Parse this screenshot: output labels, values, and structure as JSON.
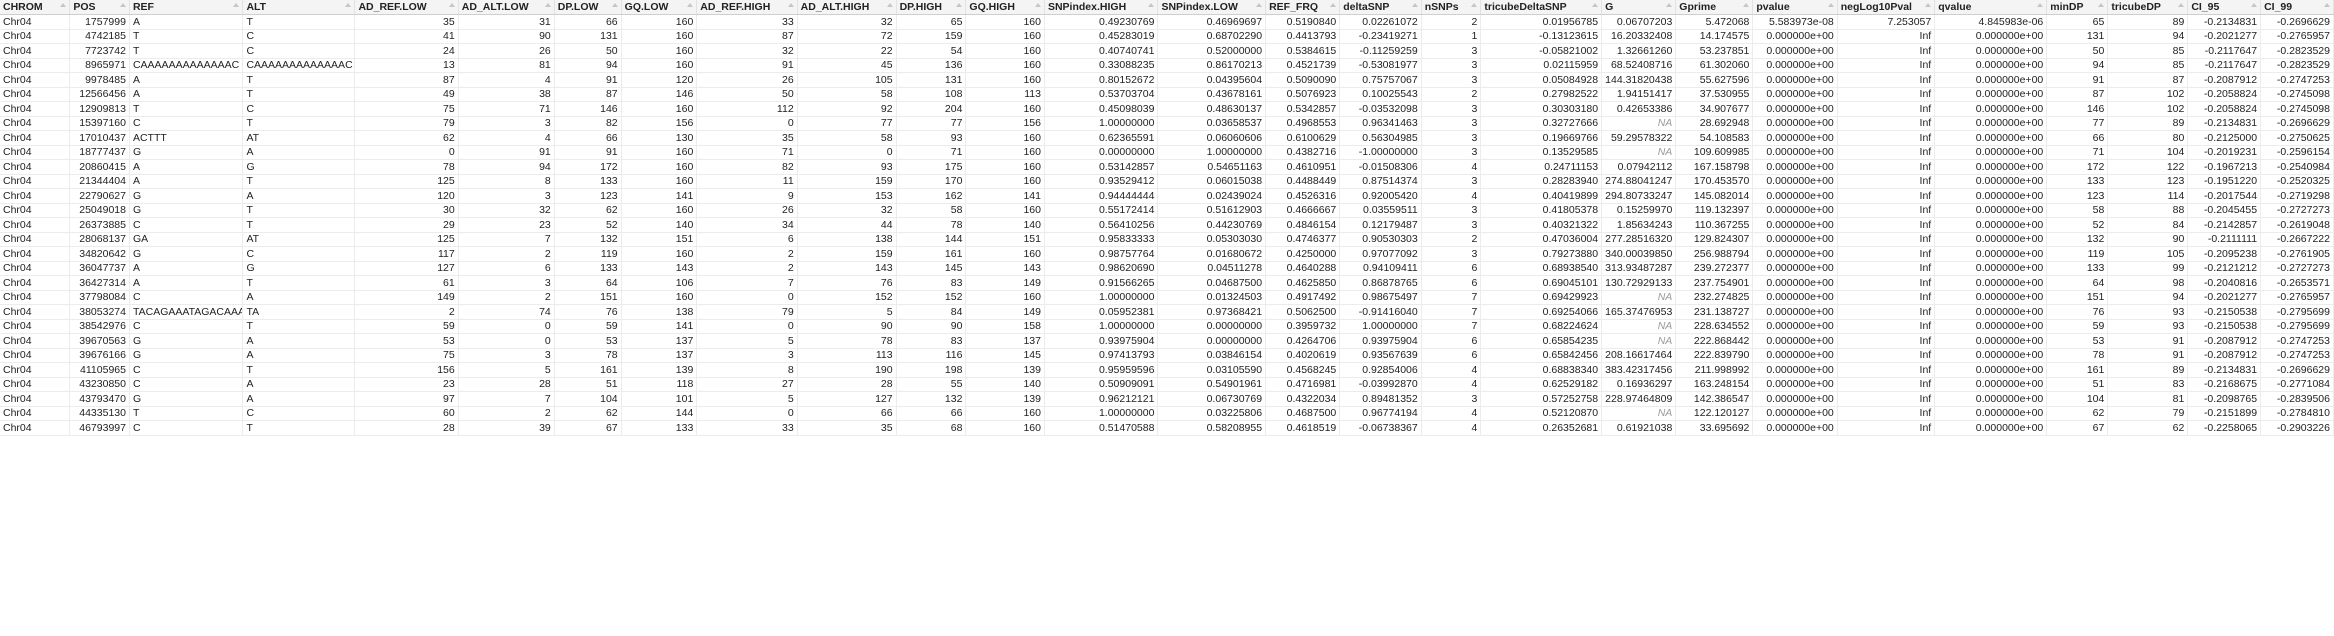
{
  "table": {
    "columns": [
      "CHROM",
      "POS",
      "REF",
      "ALT",
      "AD_REF.LOW",
      "AD_ALT.LOW",
      "DP.LOW",
      "GQ.LOW",
      "AD_REF.HIGH",
      "AD_ALT.HIGH",
      "DP.HIGH",
      "GQ.HIGH",
      "SNPindex.HIGH",
      "SNPindex.LOW",
      "REF_FRQ",
      "deltaSNP",
      "nSNPs",
      "tricubeDeltaSNP",
      "G",
      "Gprime",
      "pvalue",
      "negLog10Pval",
      "qvalue",
      "minDP",
      "tricubeDP",
      "CI_95",
      "CI_99"
    ],
    "text_columns": [
      "CHROM",
      "REF",
      "ALT"
    ],
    "rows": [
      [
        "Chr04",
        "1757999",
        "A",
        "T",
        "35",
        "31",
        "66",
        "160",
        "33",
        "32",
        "65",
        "160",
        "0.49230769",
        "0.46969697",
        "0.5190840",
        "0.02261072",
        "2",
        "0.01956785",
        "0.06707203",
        "5.472068",
        "5.583973e-08",
        "7.253057",
        "4.845983e-06",
        "65",
        "89",
        "-0.2134831",
        "-0.2696629"
      ],
      [
        "Chr04",
        "4742185",
        "T",
        "C",
        "41",
        "90",
        "131",
        "160",
        "87",
        "72",
        "159",
        "160",
        "0.45283019",
        "0.68702290",
        "0.4413793",
        "-0.23419271",
        "1",
        "-0.13123615",
        "16.20332408",
        "14.174575",
        "0.000000e+00",
        "Inf",
        "0.000000e+00",
        "131",
        "94",
        "-0.2021277",
        "-0.2765957"
      ],
      [
        "Chr04",
        "7723742",
        "T",
        "C",
        "24",
        "26",
        "50",
        "160",
        "32",
        "22",
        "54",
        "160",
        "0.40740741",
        "0.52000000",
        "0.5384615",
        "-0.11259259",
        "3",
        "-0.05821002",
        "1.32661260",
        "53.237851",
        "0.000000e+00",
        "Inf",
        "0.000000e+00",
        "50",
        "85",
        "-0.2117647",
        "-0.2823529"
      ],
      [
        "Chr04",
        "8965971",
        "CAAAAAAAAAAAAAC",
        "CAAAAAAAAAAAAAC",
        "13",
        "81",
        "94",
        "160",
        "91",
        "45",
        "136",
        "160",
        "0.33088235",
        "0.86170213",
        "0.4521739",
        "-0.53081977",
        "3",
        "0.02115959",
        "68.52408716",
        "61.302060",
        "0.000000e+00",
        "Inf",
        "0.000000e+00",
        "94",
        "85",
        "-0.2117647",
        "-0.2823529"
      ],
      [
        "Chr04",
        "9978485",
        "A",
        "T",
        "87",
        "4",
        "91",
        "120",
        "26",
        "105",
        "131",
        "160",
        "0.80152672",
        "0.04395604",
        "0.5090090",
        "0.75757067",
        "3",
        "0.05084928",
        "144.31820438",
        "55.627596",
        "0.000000e+00",
        "Inf",
        "0.000000e+00",
        "91",
        "87",
        "-0.2087912",
        "-0.2747253"
      ],
      [
        "Chr04",
        "12566456",
        "A",
        "T",
        "49",
        "38",
        "87",
        "146",
        "50",
        "58",
        "108",
        "113",
        "0.53703704",
        "0.43678161",
        "0.5076923",
        "0.10025543",
        "2",
        "0.27982522",
        "1.94151417",
        "37.530955",
        "0.000000e+00",
        "Inf",
        "0.000000e+00",
        "87",
        "102",
        "-0.2058824",
        "-0.2745098"
      ],
      [
        "Chr04",
        "12909813",
        "T",
        "C",
        "75",
        "71",
        "146",
        "160",
        "112",
        "92",
        "204",
        "160",
        "0.45098039",
        "0.48630137",
        "0.5342857",
        "-0.03532098",
        "3",
        "0.30303180",
        "0.42653386",
        "34.907677",
        "0.000000e+00",
        "Inf",
        "0.000000e+00",
        "146",
        "102",
        "-0.2058824",
        "-0.2745098"
      ],
      [
        "Chr04",
        "15397160",
        "C",
        "T",
        "79",
        "3",
        "82",
        "156",
        "0",
        "77",
        "77",
        "156",
        "1.00000000",
        "0.03658537",
        "0.4968553",
        "0.96341463",
        "3",
        "0.32727666",
        "NA",
        "28.692948",
        "0.000000e+00",
        "Inf",
        "0.000000e+00",
        "77",
        "89",
        "-0.2134831",
        "-0.2696629"
      ],
      [
        "Chr04",
        "17010437",
        "ACTTT",
        "AT",
        "62",
        "4",
        "66",
        "130",
        "35",
        "58",
        "93",
        "160",
        "0.62365591",
        "0.06060606",
        "0.6100629",
        "0.56304985",
        "3",
        "0.19669766",
        "59.29578322",
        "54.108583",
        "0.000000e+00",
        "Inf",
        "0.000000e+00",
        "66",
        "80",
        "-0.2125000",
        "-0.2750625"
      ],
      [
        "Chr04",
        "18777437",
        "G",
        "A",
        "0",
        "91",
        "91",
        "160",
        "71",
        "0",
        "71",
        "160",
        "0.00000000",
        "1.00000000",
        "0.4382716",
        "-1.00000000",
        "3",
        "0.13529585",
        "NA",
        "109.609985",
        "0.000000e+00",
        "Inf",
        "0.000000e+00",
        "71",
        "104",
        "-0.2019231",
        "-0.2596154"
      ],
      [
        "Chr04",
        "20860415",
        "A",
        "G",
        "78",
        "94",
        "172",
        "160",
        "82",
        "93",
        "175",
        "160",
        "0.53142857",
        "0.54651163",
        "0.4610951",
        "-0.01508306",
        "4",
        "0.24711153",
        "0.07942112",
        "167.158798",
        "0.000000e+00",
        "Inf",
        "0.000000e+00",
        "172",
        "122",
        "-0.1967213",
        "-0.2540984"
      ],
      [
        "Chr04",
        "21344404",
        "A",
        "T",
        "125",
        "8",
        "133",
        "160",
        "11",
        "159",
        "170",
        "160",
        "0.93529412",
        "0.06015038",
        "0.4488449",
        "0.87514374",
        "3",
        "0.28283940",
        "274.88041247",
        "170.453570",
        "0.000000e+00",
        "Inf",
        "0.000000e+00",
        "133",
        "123",
        "-0.1951220",
        "-0.2520325"
      ],
      [
        "Chr04",
        "22790627",
        "G",
        "A",
        "120",
        "3",
        "123",
        "141",
        "9",
        "153",
        "162",
        "141",
        "0.94444444",
        "0.02439024",
        "0.4526316",
        "0.92005420",
        "4",
        "0.40419899",
        "294.80733247",
        "145.082014",
        "0.000000e+00",
        "Inf",
        "0.000000e+00",
        "123",
        "114",
        "-0.2017544",
        "-0.2719298"
      ],
      [
        "Chr04",
        "25049018",
        "G",
        "T",
        "30",
        "32",
        "62",
        "160",
        "26",
        "32",
        "58",
        "160",
        "0.55172414",
        "0.51612903",
        "0.4666667",
        "0.03559511",
        "3",
        "0.41805378",
        "0.15259970",
        "119.132397",
        "0.000000e+00",
        "Inf",
        "0.000000e+00",
        "58",
        "88",
        "-0.2045455",
        "-0.2727273"
      ],
      [
        "Chr04",
        "26373885",
        "C",
        "T",
        "29",
        "23",
        "52",
        "140",
        "34",
        "44",
        "78",
        "140",
        "0.56410256",
        "0.44230769",
        "0.4846154",
        "0.12179487",
        "3",
        "0.40321322",
        "1.85634243",
        "110.367255",
        "0.000000e+00",
        "Inf",
        "0.000000e+00",
        "52",
        "84",
        "-0.2142857",
        "-0.2619048"
      ],
      [
        "Chr04",
        "28068137",
        "GA",
        "AT",
        "125",
        "7",
        "132",
        "151",
        "6",
        "138",
        "144",
        "151",
        "0.95833333",
        "0.05303030",
        "0.4746377",
        "0.90530303",
        "2",
        "0.47036004",
        "277.28516320",
        "129.824307",
        "0.000000e+00",
        "Inf",
        "0.000000e+00",
        "132",
        "90",
        "-0.2111111",
        "-0.2667222"
      ],
      [
        "Chr04",
        "34820642",
        "G",
        "C",
        "117",
        "2",
        "119",
        "160",
        "2",
        "159",
        "161",
        "160",
        "0.98757764",
        "0.01680672",
        "0.4250000",
        "0.97077092",
        "3",
        "0.79273880",
        "340.00039850",
        "256.988794",
        "0.000000e+00",
        "Inf",
        "0.000000e+00",
        "119",
        "105",
        "-0.2095238",
        "-0.2761905"
      ],
      [
        "Chr04",
        "36047737",
        "A",
        "G",
        "127",
        "6",
        "133",
        "143",
        "2",
        "143",
        "145",
        "143",
        "0.98620690",
        "0.04511278",
        "0.4640288",
        "0.94109411",
        "6",
        "0.68938540",
        "313.93487287",
        "239.272377",
        "0.000000e+00",
        "Inf",
        "0.000000e+00",
        "133",
        "99",
        "-0.2121212",
        "-0.2727273"
      ],
      [
        "Chr04",
        "36427314",
        "A",
        "T",
        "61",
        "3",
        "64",
        "106",
        "7",
        "76",
        "83",
        "149",
        "0.91566265",
        "0.04687500",
        "0.4625850",
        "0.86878765",
        "6",
        "0.69045101",
        "130.72929133",
        "237.754901",
        "0.000000e+00",
        "Inf",
        "0.000000e+00",
        "64",
        "98",
        "-0.2040816",
        "-0.2653571"
      ],
      [
        "Chr04",
        "37798084",
        "C",
        "A",
        "149",
        "2",
        "151",
        "160",
        "0",
        "152",
        "152",
        "160",
        "1.00000000",
        "0.01324503",
        "0.4917492",
        "0.98675497",
        "7",
        "0.69429923",
        "NA",
        "232.274825",
        "0.000000e+00",
        "Inf",
        "0.000000e+00",
        "151",
        "94",
        "-0.2021277",
        "-0.2765957"
      ],
      [
        "Chr04",
        "38053274",
        "TACAGAAATAGACAAA",
        "TA",
        "2",
        "74",
        "76",
        "138",
        "79",
        "5",
        "84",
        "149",
        "0.05952381",
        "0.97368421",
        "0.5062500",
        "-0.91416040",
        "7",
        "0.69254066",
        "165.37476953",
        "231.138727",
        "0.000000e+00",
        "Inf",
        "0.000000e+00",
        "76",
        "93",
        "-0.2150538",
        "-0.2795699"
      ],
      [
        "Chr04",
        "38542976",
        "C",
        "T",
        "59",
        "0",
        "59",
        "141",
        "0",
        "90",
        "90",
        "158",
        "1.00000000",
        "0.00000000",
        "0.3959732",
        "1.00000000",
        "7",
        "0.68224624",
        "NA",
        "228.634552",
        "0.000000e+00",
        "Inf",
        "0.000000e+00",
        "59",
        "93",
        "-0.2150538",
        "-0.2795699"
      ],
      [
        "Chr04",
        "39670563",
        "G",
        "A",
        "53",
        "0",
        "53",
        "137",
        "5",
        "78",
        "83",
        "137",
        "0.93975904",
        "0.00000000",
        "0.4264706",
        "0.93975904",
        "6",
        "0.65854235",
        "NA",
        "222.868442",
        "0.000000e+00",
        "Inf",
        "0.000000e+00",
        "53",
        "91",
        "-0.2087912",
        "-0.2747253"
      ],
      [
        "Chr04",
        "39676166",
        "G",
        "A",
        "75",
        "3",
        "78",
        "137",
        "3",
        "113",
        "116",
        "145",
        "0.97413793",
        "0.03846154",
        "0.4020619",
        "0.93567639",
        "6",
        "0.65842456",
        "208.16617464",
        "222.839790",
        "0.000000e+00",
        "Inf",
        "0.000000e+00",
        "78",
        "91",
        "-0.2087912",
        "-0.2747253"
      ],
      [
        "Chr04",
        "41105965",
        "C",
        "T",
        "156",
        "5",
        "161",
        "139",
        "8",
        "190",
        "198",
        "139",
        "0.95959596",
        "0.03105590",
        "0.4568245",
        "0.92854006",
        "4",
        "0.68838340",
        "383.42317456",
        "211.998992",
        "0.000000e+00",
        "Inf",
        "0.000000e+00",
        "161",
        "89",
        "-0.2134831",
        "-0.2696629"
      ],
      [
        "Chr04",
        "43230850",
        "C",
        "A",
        "23",
        "28",
        "51",
        "118",
        "27",
        "28",
        "55",
        "140",
        "0.50909091",
        "0.54901961",
        "0.4716981",
        "-0.03992870",
        "4",
        "0.62529182",
        "0.16936297",
        "163.248154",
        "0.000000e+00",
        "Inf",
        "0.000000e+00",
        "51",
        "83",
        "-0.2168675",
        "-0.2771084"
      ],
      [
        "Chr04",
        "43793470",
        "G",
        "A",
        "97",
        "7",
        "104",
        "101",
        "5",
        "127",
        "132",
        "139",
        "0.96212121",
        "0.06730769",
        "0.4322034",
        "0.89481352",
        "3",
        "0.57252758",
        "228.97464809",
        "142.386547",
        "0.000000e+00",
        "Inf",
        "0.000000e+00",
        "104",
        "81",
        "-0.2098765",
        "-0.2839506"
      ],
      [
        "Chr04",
        "44335130",
        "T",
        "C",
        "60",
        "2",
        "62",
        "144",
        "0",
        "66",
        "66",
        "160",
        "1.00000000",
        "0.03225806",
        "0.4687500",
        "0.96774194",
        "4",
        "0.52120870",
        "NA",
        "122.120127",
        "0.000000e+00",
        "Inf",
        "0.000000e+00",
        "62",
        "79",
        "-0.2151899",
        "-0.2784810"
      ],
      [
        "Chr04",
        "46793997",
        "C",
        "T",
        "28",
        "39",
        "67",
        "133",
        "33",
        "35",
        "68",
        "160",
        "0.51470588",
        "0.58208955",
        "0.4618519",
        "-0.06738367",
        "4",
        "0.26352681",
        "0.61921038",
        "33.695692",
        "0.000000e+00",
        "Inf",
        "0.000000e+00",
        "67",
        "62",
        "-0.2258065",
        "-0.2903226"
      ]
    ]
  }
}
